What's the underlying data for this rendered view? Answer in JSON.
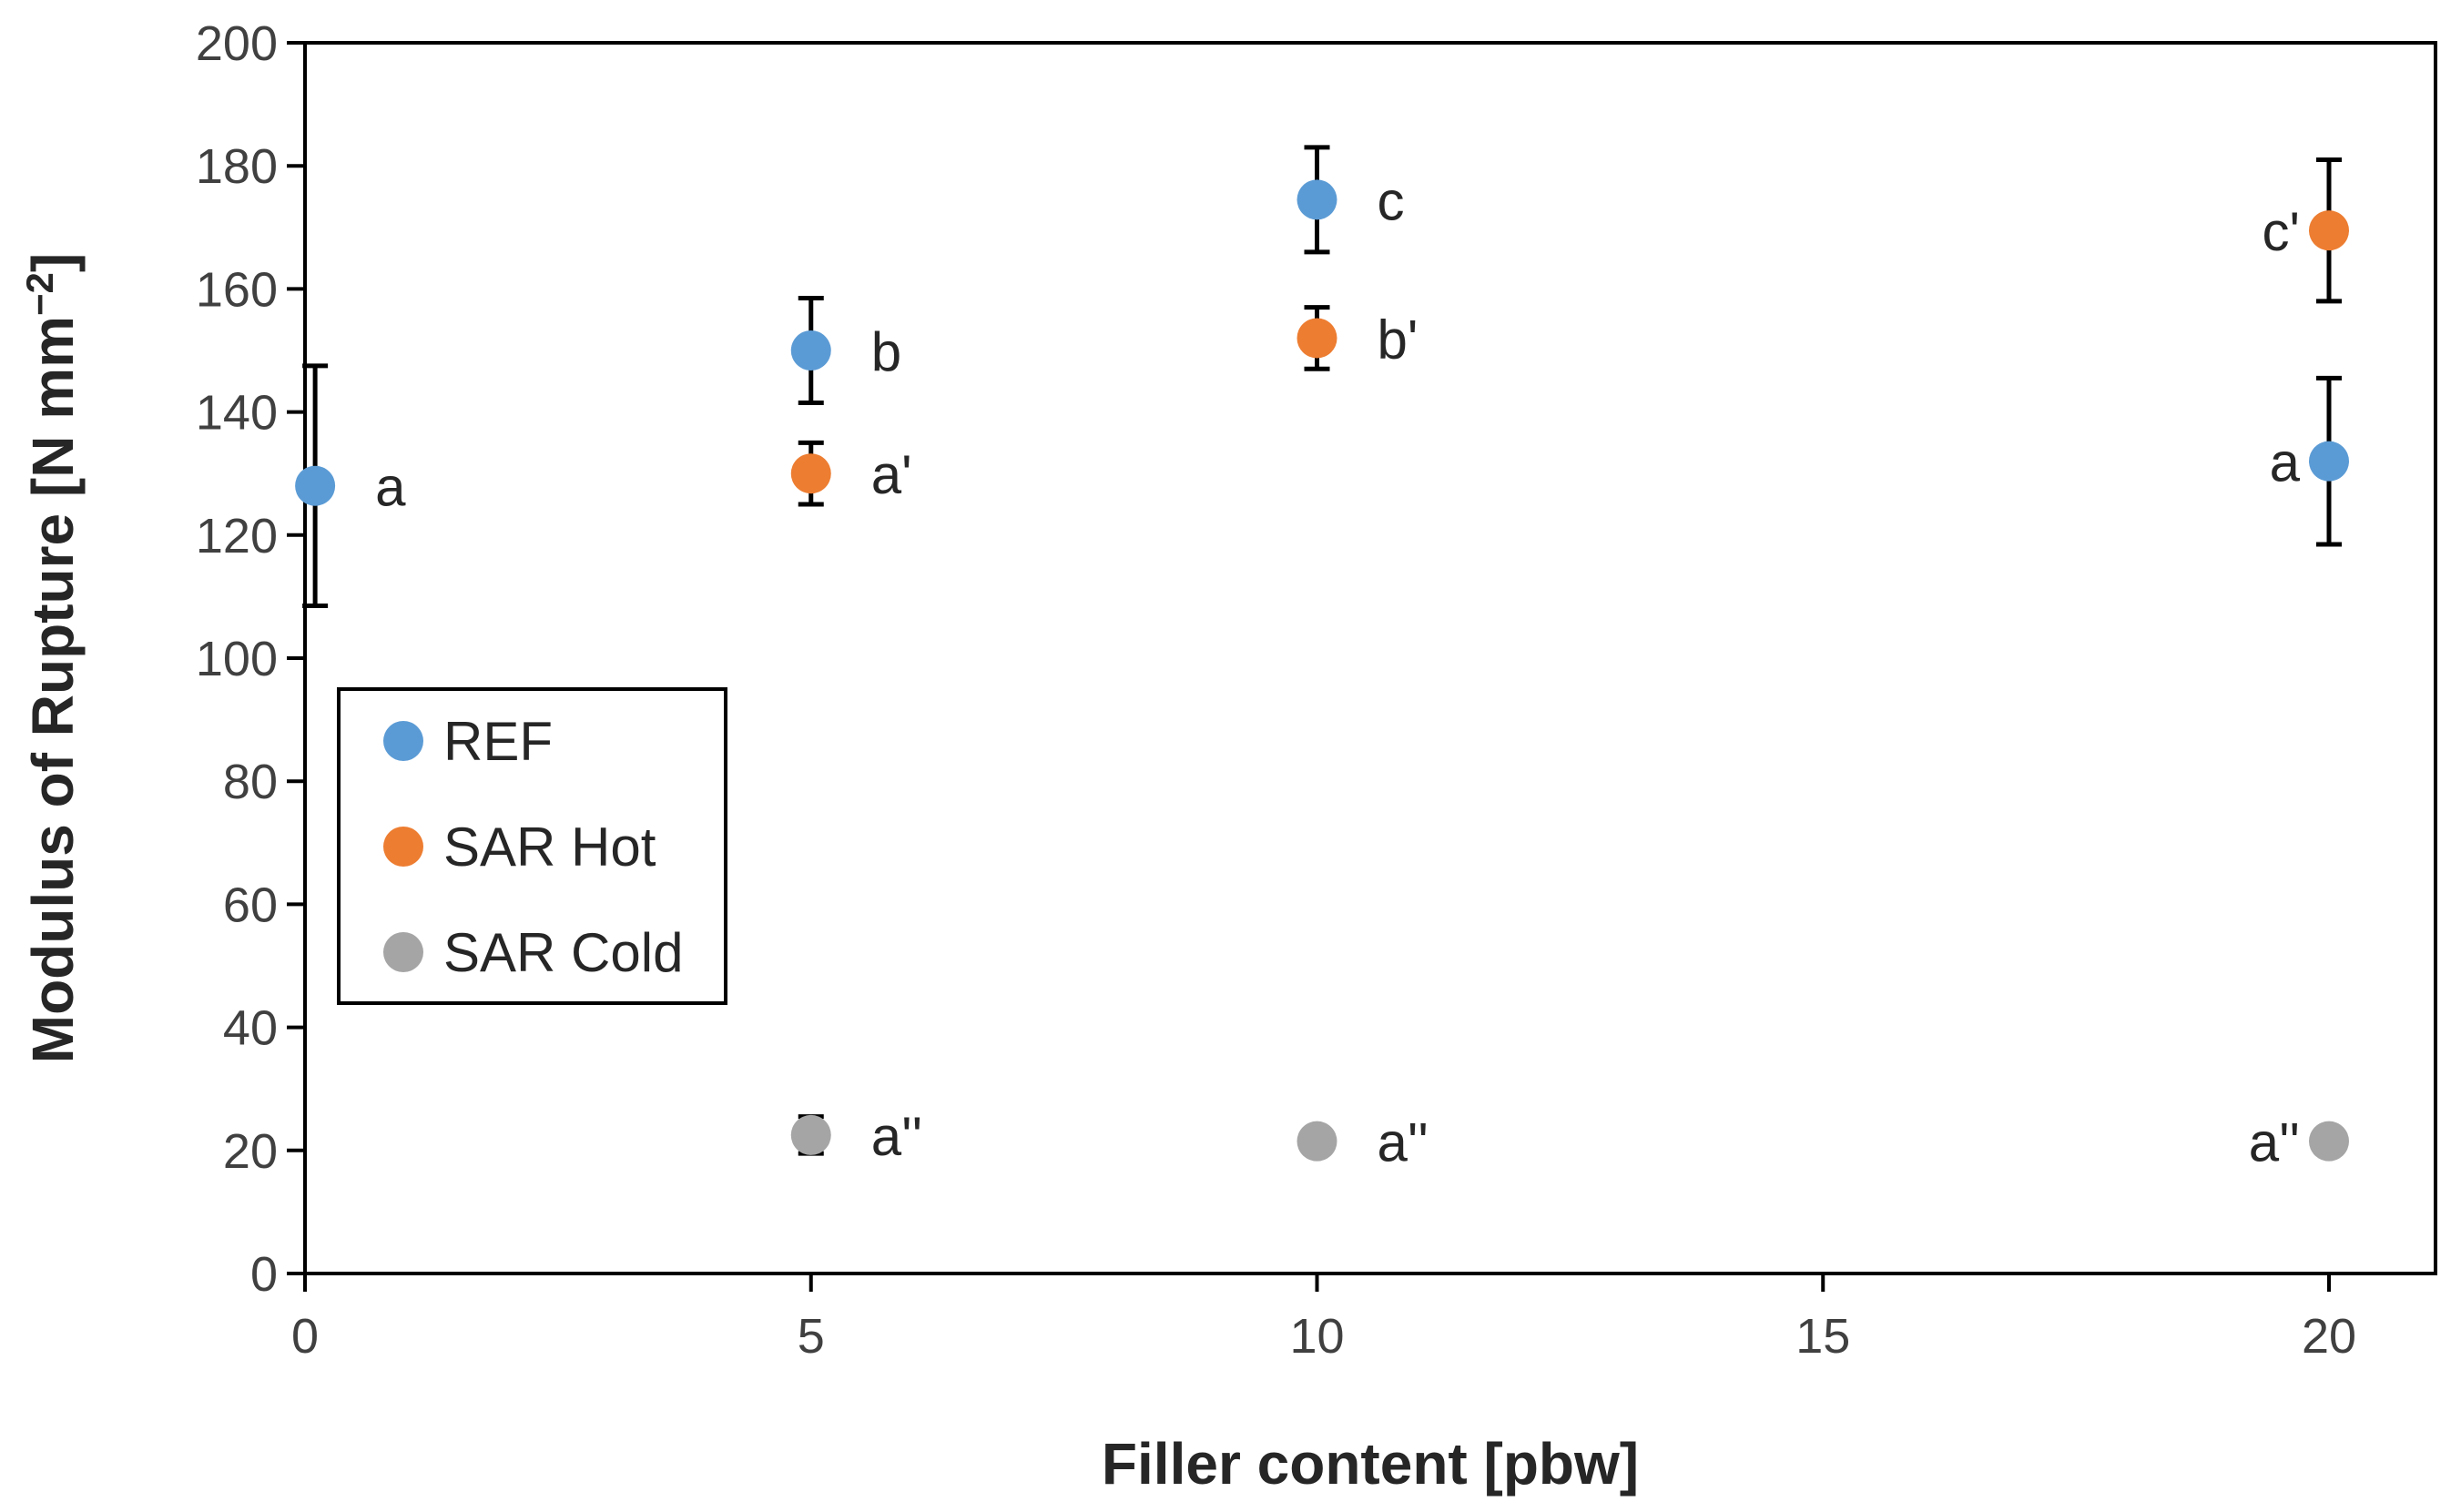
{
  "chart_data": {
    "type": "scatter",
    "xlabel": "Filler content [pbw]",
    "ylabel": "Modulus of Rupture [N mm",
    "ylabel_sup": "−2",
    "ylabel_end": "]",
    "xlim": [
      0,
      21
    ],
    "ylim": [
      0,
      200
    ],
    "xticks": [
      0,
      5,
      10,
      15,
      20
    ],
    "yticks": [
      0,
      20,
      40,
      60,
      80,
      100,
      120,
      140,
      160,
      180,
      200
    ],
    "grid": false,
    "legend_position": "lower-left",
    "series": [
      {
        "name": "REF",
        "color": "#5B9BD5",
        "points": [
          {
            "x": 0.1,
            "y": 128,
            "err": 19.5,
            "label": "a",
            "label_side": "right"
          },
          {
            "x": 5,
            "y": 150,
            "err": 8.5,
            "label": "b",
            "label_side": "right"
          },
          {
            "x": 10,
            "y": 174.5,
            "err": 8.5,
            "label": "c",
            "label_side": "right"
          },
          {
            "x": 20,
            "y": 132,
            "err": 13.5,
            "label": "a",
            "label_side": "left"
          }
        ]
      },
      {
        "name": "SAR Hot",
        "color": "#ED7D31",
        "points": [
          {
            "x": 5,
            "y": 130,
            "err": 5,
            "label": "a'",
            "label_side": "right"
          },
          {
            "x": 10,
            "y": 152,
            "err": 5,
            "label": "b'",
            "label_side": "right"
          },
          {
            "x": 20,
            "y": 169.5,
            "err": 11.5,
            "label": "c'",
            "label_side": "left"
          }
        ]
      },
      {
        "name": "SAR Cold",
        "color": "#A5A5A5",
        "points": [
          {
            "x": 5,
            "y": 22.5,
            "err": 3,
            "label": "a''",
            "label_side": "right"
          },
          {
            "x": 10,
            "y": 21.5,
            "err": 1,
            "label": "a''",
            "label_side": "right"
          },
          {
            "x": 20,
            "y": 21.5,
            "err": 1,
            "label": "a''",
            "label_side": "left"
          }
        ]
      }
    ]
  }
}
